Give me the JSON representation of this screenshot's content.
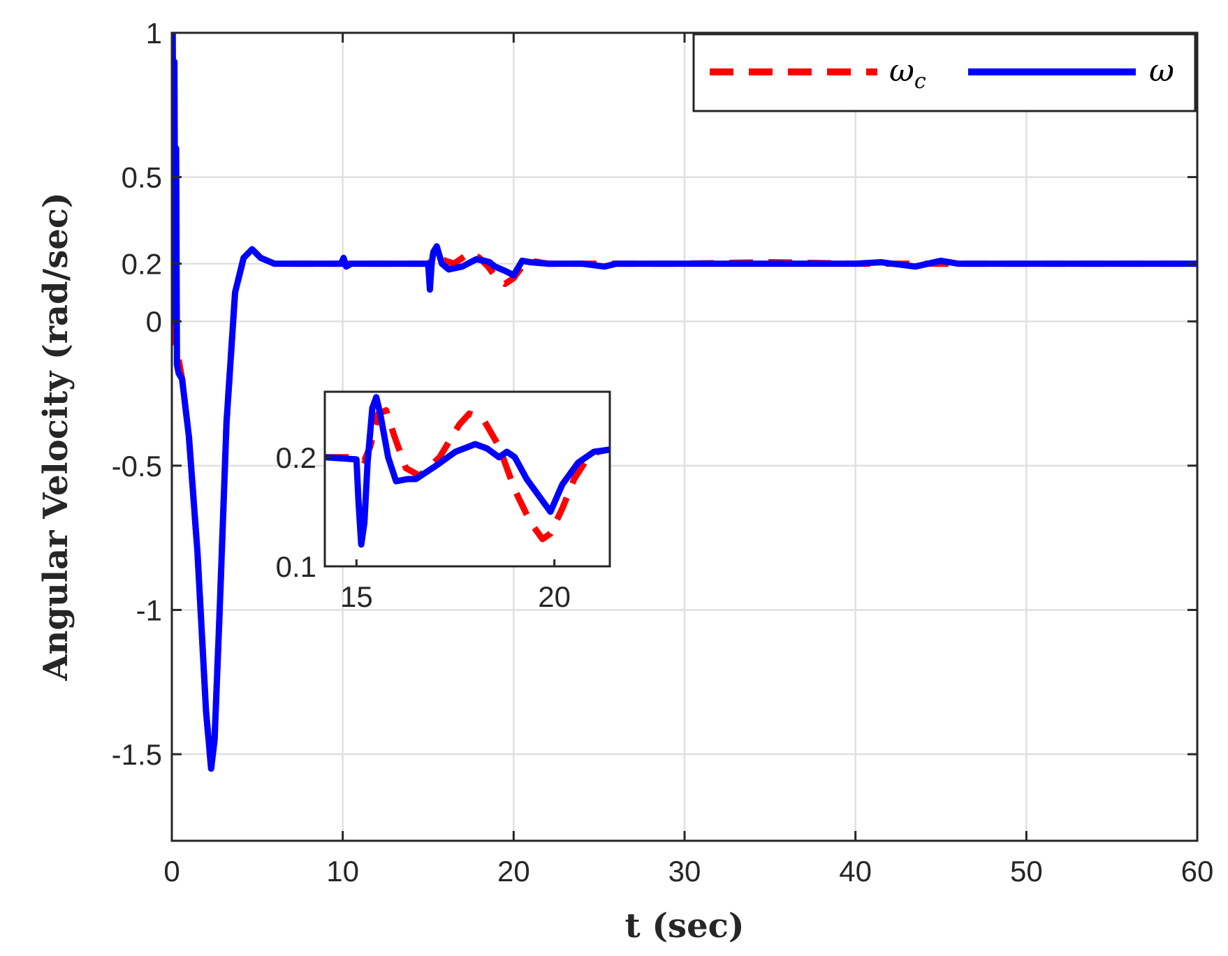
{
  "chart_data": {
    "type": "line",
    "xlabel": "t (sec)",
    "ylabel": "Angular Velocity (rad/sec)",
    "xlim": [
      0,
      60
    ],
    "ylim": [
      -1.8,
      1
    ],
    "xticks": [
      0,
      10,
      20,
      30,
      40,
      50,
      60
    ],
    "xtick_labels": [
      "0",
      "10",
      "20",
      "30",
      "40",
      "50",
      "60"
    ],
    "yticks": [
      -1.5,
      -1,
      -0.5,
      0,
      0.2,
      0.5,
      1
    ],
    "ytick_labels": [
      "-1.5",
      "-1",
      "-0.5",
      "0",
      "0.2",
      "0.5",
      "1"
    ],
    "grid": true,
    "legend_position": "top-right",
    "colors": {
      "omega_c": "#ff0000",
      "omega": "#0000ff",
      "grid": "#e0e0e0",
      "axes": "#262626"
    },
    "series": [
      {
        "name": "ω_c",
        "style": "dashed",
        "x": [
          0,
          0.1,
          0.3,
          0.6,
          1.0,
          1.5,
          2.0,
          2.3,
          2.5,
          2.8,
          3.2,
          3.7,
          4.2,
          4.7,
          5.2,
          6.0,
          7.0,
          10,
          12,
          14,
          15.0,
          15.5,
          16.0,
          16.5,
          17.0,
          17.5,
          18.0,
          18.5,
          19.0,
          19.5,
          20.0,
          20.5,
          21.0,
          22,
          25,
          30,
          35,
          40,
          45,
          50,
          55,
          60
        ],
        "y": [
          0,
          -0.05,
          -0.1,
          -0.2,
          -0.4,
          -0.8,
          -1.35,
          -1.55,
          -1.45,
          -1.0,
          -0.35,
          0.1,
          0.22,
          0.25,
          0.22,
          0.2,
          0.2,
          0.2,
          0.2,
          0.2,
          0.2,
          0.225,
          0.21,
          0.2,
          0.22,
          0.24,
          0.22,
          0.19,
          0.15,
          0.13,
          0.15,
          0.19,
          0.21,
          0.2,
          0.2,
          0.2,
          0.205,
          0.2,
          0.2,
          0.2,
          0.2,
          0.2
        ]
      },
      {
        "name": "ω",
        "style": "solid",
        "x": [
          0,
          0.05,
          0.1,
          0.15,
          0.2,
          0.25,
          0.3,
          0.4,
          0.6,
          1.0,
          1.5,
          2.0,
          2.3,
          2.5,
          2.8,
          3.2,
          3.7,
          4.2,
          4.7,
          5.2,
          6.0,
          7.0,
          9.9,
          10.05,
          10.2,
          10.5,
          12,
          14,
          15.0,
          15.1,
          15.2,
          15.3,
          15.5,
          15.8,
          16.2,
          17.0,
          17.8,
          18.3,
          18.6,
          18.9,
          19.5,
          20.0,
          20.5,
          21.0,
          22,
          24,
          25.3,
          26,
          30,
          35,
          40,
          41.5,
          43.5,
          45,
          46,
          50,
          55,
          60
        ],
        "y": [
          0,
          1.0,
          0.4,
          0.9,
          0.1,
          0.6,
          -0.15,
          -0.18,
          -0.2,
          -0.4,
          -0.8,
          -1.35,
          -1.55,
          -1.45,
          -1.0,
          -0.35,
          0.1,
          0.22,
          0.25,
          0.22,
          0.2,
          0.2,
          0.2,
          0.22,
          0.19,
          0.2,
          0.2,
          0.2,
          0.2,
          0.11,
          0.2,
          0.24,
          0.26,
          0.2,
          0.18,
          0.19,
          0.215,
          0.21,
          0.205,
          0.19,
          0.175,
          0.16,
          0.21,
          0.205,
          0.2,
          0.2,
          0.19,
          0.2,
          0.2,
          0.2,
          0.2,
          0.205,
          0.19,
          0.21,
          0.2,
          0.2,
          0.2,
          0.2
        ]
      }
    ],
    "inset": {
      "xlim": [
        14.2,
        21.4
      ],
      "ylim": [
        0.1,
        0.26
      ],
      "xticks": [
        15,
        20
      ],
      "xtick_labels": [
        "15",
        "20"
      ],
      "yticks": [
        0.1,
        0.2
      ],
      "ytick_labels": [
        "0.1",
        "0.2"
      ],
      "series": [
        {
          "name": "ω_c",
          "x": [
            14.2,
            15.1,
            15.2,
            15.35,
            15.55,
            15.75,
            15.95,
            16.25,
            16.6,
            17.1,
            17.6,
            17.85,
            18.2,
            18.6,
            19.0,
            19.4,
            19.7,
            19.9,
            20.2,
            20.5,
            20.8,
            21.1,
            21.4
          ],
          "y": [
            0.2,
            0.2,
            0.197,
            0.21,
            0.24,
            0.243,
            0.22,
            0.19,
            0.183,
            0.2,
            0.23,
            0.24,
            0.235,
            0.21,
            0.17,
            0.14,
            0.125,
            0.13,
            0.153,
            0.18,
            0.197,
            0.205,
            0.207
          ]
        },
        {
          "name": "ω",
          "x": [
            14.2,
            15.0,
            15.05,
            15.12,
            15.2,
            15.28,
            15.4,
            15.5,
            15.6,
            15.8,
            16.0,
            16.3,
            16.5,
            17.0,
            17.5,
            18.0,
            18.3,
            18.6,
            18.8,
            19.0,
            19.3,
            19.7,
            19.9,
            20.2,
            20.6,
            21.0,
            21.4
          ],
          "y": [
            0.2,
            0.198,
            0.16,
            0.12,
            0.14,
            0.195,
            0.245,
            0.255,
            0.24,
            0.2,
            0.178,
            0.18,
            0.18,
            0.192,
            0.205,
            0.212,
            0.208,
            0.2,
            0.205,
            0.2,
            0.18,
            0.16,
            0.15,
            0.175,
            0.195,
            0.205,
            0.207
          ]
        }
      ]
    }
  },
  "legend": {
    "omega_c_label": "ω",
    "omega_c_subscript": "c",
    "omega_label": "ω"
  }
}
